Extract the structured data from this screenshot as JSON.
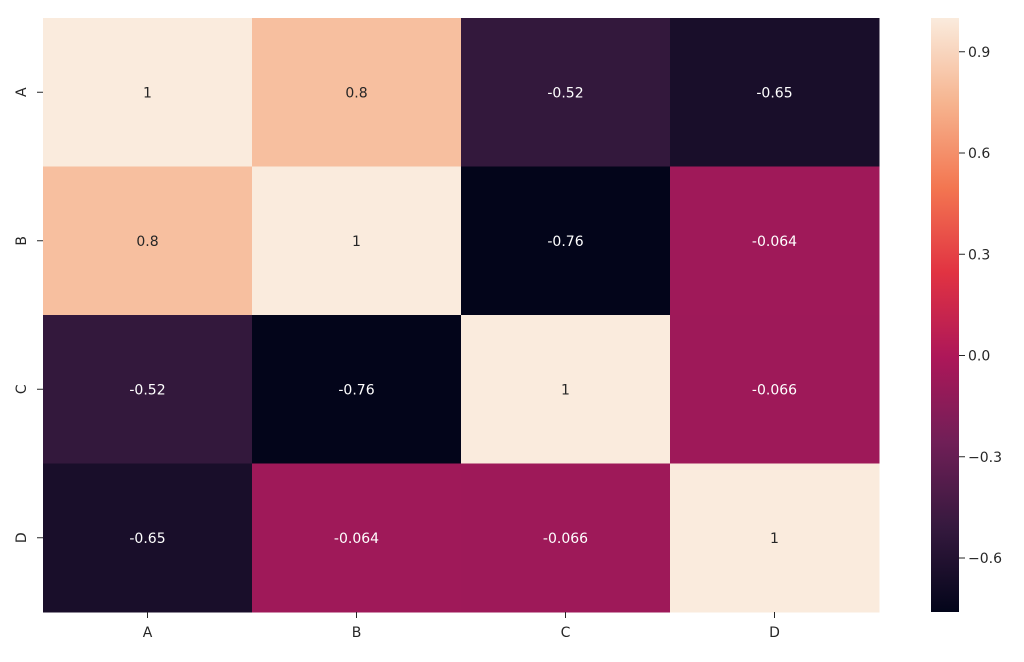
{
  "chart_data": {
    "type": "heatmap",
    "x_categories": [
      "A",
      "B",
      "C",
      "D"
    ],
    "y_categories": [
      "A",
      "B",
      "C",
      "D"
    ],
    "values": [
      [
        1,
        0.8,
        -0.52,
        -0.65
      ],
      [
        0.8,
        1,
        -0.76,
        -0.064
      ],
      [
        -0.52,
        -0.76,
        1,
        -0.066
      ],
      [
        -0.65,
        -0.064,
        -0.066,
        1
      ]
    ],
    "cell_labels": [
      [
        "1",
        "0.8",
        "-0.52",
        "-0.65"
      ],
      [
        "0.8",
        "1",
        "-0.76",
        "-0.064"
      ],
      [
        "-0.52",
        "-0.76",
        "1",
        "-0.066"
      ],
      [
        "-0.65",
        "-0.064",
        "-0.066",
        "1"
      ]
    ],
    "colorbar": {
      "vmin": -0.76,
      "vmax": 1,
      "ticks": [
        0.9,
        0.6,
        0.3,
        0.0,
        -0.3,
        -0.6
      ],
      "tick_labels": [
        "0.9",
        "0.6",
        "0.3",
        "0.0",
        "−0.3",
        "−0.6"
      ],
      "colormap": "rocket",
      "colormap_stops": [
        "#03051a",
        "#35193e",
        "#701f57",
        "#ad1759",
        "#e13342",
        "#f37651",
        "#f6b48f",
        "#faebdd"
      ]
    },
    "title": "",
    "xlabel": "",
    "ylabel": "",
    "legend": "colorbar-right"
  }
}
